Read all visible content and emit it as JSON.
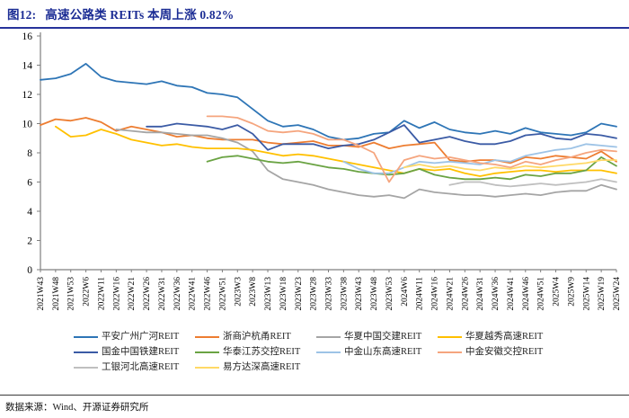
{
  "report": {
    "figure_label": "图12:",
    "figure_title": "高速公路类 REITs 本周上涨 0.82%",
    "source": "数据来源：Wind、开源证券研究所"
  },
  "chart_data": {
    "type": "line",
    "title": "高速公路类 REITs 本周上涨 0.82%",
    "xlabel": "",
    "ylabel": "",
    "ylim": [
      0,
      16
    ],
    "yticks": [
      0,
      2,
      4,
      6,
      8,
      10,
      12,
      14,
      16
    ],
    "grid": false,
    "legend_position": "bottom",
    "axis_color": "#7F7F7F",
    "x_labels": [
      "2021W43",
      "2021W48",
      "2021W53",
      "2022W6",
      "2022W11",
      "2022W16",
      "2022W21",
      "2022W26",
      "2022W31",
      "2022W36",
      "2022W41",
      "2022W46",
      "2022W51",
      "2023W3",
      "2023W8",
      "2023W13",
      "2023W18",
      "2023W23",
      "2023W28",
      "2023W33",
      "2023W38",
      "2023W43",
      "2023W48",
      "2023W53",
      "2024W6",
      "2024W11",
      "2024W16",
      "2024W21",
      "2024W26",
      "2024W31",
      "2024W36",
      "2024W41",
      "2024W46",
      "2024W51",
      "2025W4",
      "2025W9",
      "2025W14",
      "2025W19",
      "2025W24"
    ],
    "series": [
      {
        "name": "平安广州广河REIT",
        "color": "#2E75B6",
        "values": [
          13.0,
          13.1,
          13.4,
          14.1,
          13.2,
          12.9,
          12.8,
          12.7,
          12.9,
          12.6,
          12.5,
          12.1,
          12.0,
          11.8,
          11.0,
          10.2,
          9.8,
          9.9,
          9.6,
          9.1,
          8.9,
          9.0,
          9.3,
          9.4,
          10.2,
          9.7,
          10.1,
          9.6,
          9.4,
          9.3,
          9.5,
          9.3,
          9.7,
          9.4,
          9.3,
          9.2,
          9.4,
          10.0,
          9.8
        ]
      },
      {
        "name": "浙商沪杭甬REIT",
        "color": "#ED7D31",
        "values": [
          9.9,
          10.3,
          10.2,
          10.4,
          10.1,
          9.5,
          9.8,
          9.6,
          9.4,
          9.1,
          9.2,
          9.0,
          8.9,
          8.9,
          8.9,
          8.7,
          8.6,
          8.7,
          8.8,
          8.5,
          8.5,
          8.4,
          8.7,
          8.3,
          8.5,
          8.6,
          8.7,
          7.5,
          7.4,
          7.5,
          7.5,
          7.3,
          7.7,
          7.6,
          7.8,
          7.7,
          7.6,
          8.1,
          7.4
        ]
      },
      {
        "name": "华夏中国交建REIT",
        "color": "#A5A5A5",
        "values": [
          null,
          null,
          null,
          null,
          null,
          9.6,
          9.5,
          9.4,
          9.4,
          9.3,
          9.2,
          9.2,
          9.0,
          8.7,
          8.1,
          6.8,
          6.2,
          6.0,
          5.8,
          5.5,
          5.3,
          5.1,
          5.0,
          5.1,
          4.9,
          5.5,
          5.3,
          5.2,
          5.1,
          5.1,
          5.0,
          5.1,
          5.2,
          5.1,
          5.3,
          5.4,
          5.4,
          5.8,
          5.5
        ]
      },
      {
        "name": "华夏越秀高速REIT",
        "color": "#FFC000",
        "values": [
          null,
          9.8,
          9.1,
          9.2,
          9.6,
          9.3,
          8.9,
          8.7,
          8.5,
          8.6,
          8.4,
          8.3,
          8.3,
          8.3,
          8.2,
          8.0,
          7.8,
          7.9,
          7.8,
          7.6,
          7.4,
          7.2,
          7.0,
          6.8,
          6.6,
          6.9,
          6.8,
          6.9,
          6.6,
          6.4,
          6.6,
          6.7,
          6.8,
          6.8,
          6.7,
          6.8,
          6.8,
          6.8,
          6.6
        ]
      },
      {
        "name": "国金中国铁建REIT",
        "color": "#3B5BA5",
        "values": [
          null,
          null,
          null,
          null,
          null,
          null,
          null,
          9.8,
          9.8,
          10.0,
          9.9,
          9.8,
          9.6,
          9.9,
          9.3,
          8.2,
          8.6,
          8.6,
          8.6,
          8.3,
          8.5,
          8.6,
          8.9,
          9.4,
          9.9,
          8.7,
          8.9,
          9.1,
          8.8,
          8.6,
          8.6,
          8.8,
          9.2,
          9.3,
          9.0,
          8.9,
          9.3,
          9.2,
          9.0
        ]
      },
      {
        "name": "华泰江苏交控REIT",
        "color": "#6AA343",
        "values": [
          null,
          null,
          null,
          null,
          null,
          null,
          null,
          null,
          null,
          null,
          null,
          7.4,
          7.7,
          7.8,
          7.6,
          7.4,
          7.3,
          7.4,
          7.2,
          7.0,
          6.9,
          6.7,
          6.6,
          6.5,
          6.6,
          6.9,
          6.5,
          6.3,
          6.2,
          6.2,
          6.3,
          6.2,
          6.5,
          6.4,
          6.6,
          6.6,
          6.8,
          7.7,
          7.1
        ]
      },
      {
        "name": "中金山东高速REIT",
        "color": "#9DC3E6",
        "values": [
          null,
          null,
          null,
          null,
          null,
          null,
          null,
          null,
          null,
          null,
          null,
          null,
          null,
          null,
          null,
          null,
          null,
          null,
          null,
          null,
          7.4,
          6.9,
          6.6,
          6.6,
          7.0,
          7.4,
          7.3,
          7.4,
          7.3,
          7.2,
          7.5,
          7.4,
          7.8,
          8.0,
          8.2,
          8.3,
          8.6,
          8.5,
          8.4
        ]
      },
      {
        "name": "中金安徽交控REIT",
        "color": "#F5A57E",
        "values": [
          null,
          null,
          null,
          null,
          null,
          null,
          null,
          null,
          null,
          null,
          null,
          10.5,
          10.5,
          10.4,
          10.0,
          9.5,
          9.4,
          9.5,
          9.3,
          8.9,
          8.9,
          8.5,
          8.0,
          6.0,
          7.5,
          7.8,
          7.6,
          7.7,
          7.5,
          7.3,
          7.2,
          7.0,
          7.4,
          7.2,
          7.5,
          7.7,
          8.0,
          8.2,
          8.1
        ]
      },
      {
        "name": "工银河北高速REIT",
        "color": "#BFBFBF",
        "values": [
          null,
          null,
          null,
          null,
          null,
          null,
          null,
          null,
          null,
          null,
          null,
          null,
          null,
          null,
          null,
          null,
          null,
          null,
          null,
          null,
          null,
          null,
          null,
          null,
          null,
          null,
          null,
          5.8,
          6.0,
          6.0,
          5.8,
          5.7,
          5.8,
          5.9,
          5.8,
          5.9,
          6.0,
          6.2,
          6.0
        ]
      },
      {
        "name": "易方达深高速REIT",
        "color": "#FFD966",
        "values": [
          null,
          null,
          null,
          null,
          null,
          null,
          null,
          null,
          null,
          null,
          null,
          null,
          null,
          null,
          null,
          null,
          null,
          null,
          null,
          null,
          null,
          null,
          null,
          null,
          7.0,
          7.2,
          7.0,
          7.1,
          6.9,
          6.8,
          7.0,
          6.9,
          7.1,
          7.0,
          7.1,
          7.2,
          7.3,
          7.5,
          7.5
        ]
      }
    ]
  }
}
